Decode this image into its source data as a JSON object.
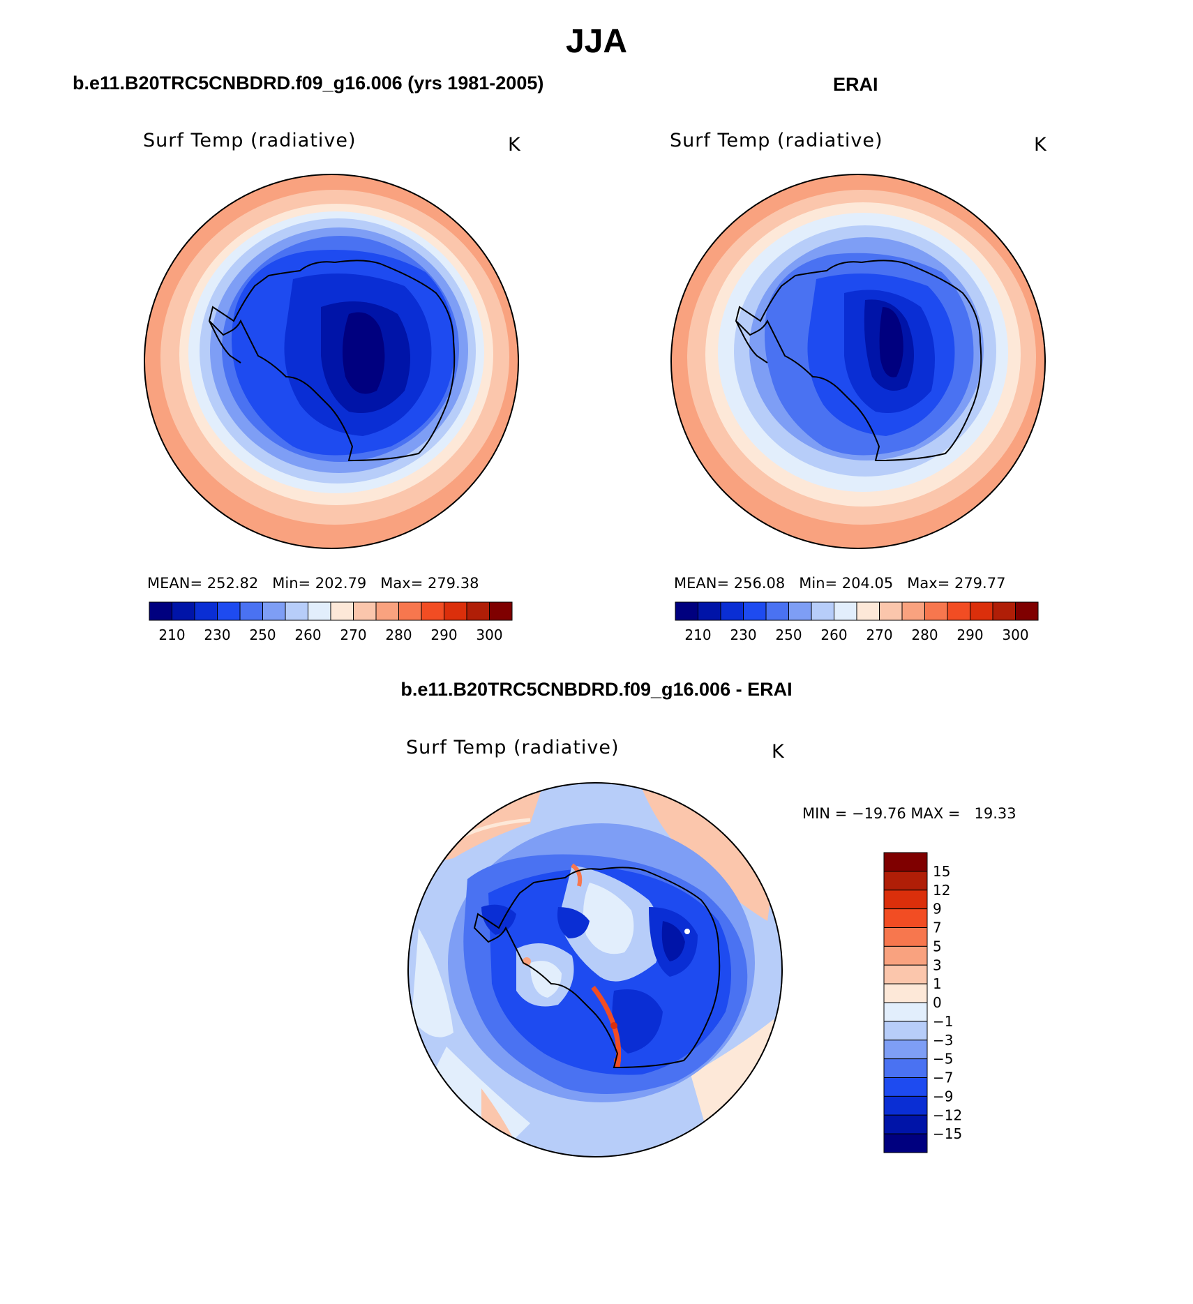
{
  "figure": {
    "title": "JJA",
    "panel_a": {
      "case_title": "b.e11.B20TRC5CNBDRD.f09_g16.006 (yrs 1981-2005)",
      "variable": "Surf Temp (radiative)",
      "units": "K",
      "stats": "MEAN= 252.82   Min= 202.79   Max= 279.38"
    },
    "panel_b": {
      "case_title": "ERAI",
      "variable": "Surf Temp (radiative)",
      "units": "K",
      "stats": "MEAN= 256.08   Min= 204.05   Max= 279.77"
    },
    "panel_diff": {
      "case_title": "b.e11.B20TRC5CNBDRD.f09_g16.006 - ERAI",
      "variable": "Surf Temp (radiative)",
      "units": "K",
      "stats": "MIN = −19.76 MAX =   19.33"
    }
  },
  "colorbars": {
    "abs_colors": [
      "#00007f",
      "#0014a8",
      "#0a2ed4",
      "#1e4bf0",
      "#4a72f2",
      "#7e9ef5",
      "#b7cdf9",
      "#e2eefc",
      "#fde8d8",
      "#fbc6ac",
      "#f9a27f",
      "#f7774e",
      "#f24d23",
      "#db2f0b",
      "#b01e07",
      "#7f0000"
    ],
    "abs_labels": [
      "210",
      "230",
      "250",
      "260",
      "270",
      "280",
      "290",
      "300"
    ],
    "diff_colors": [
      "#00007f",
      "#0014a8",
      "#0a2ed4",
      "#1e4bf0",
      "#4a72f2",
      "#7e9ef5",
      "#b7cdf9",
      "#e2eefc",
      "#fde8d8",
      "#fbc6ac",
      "#f9a27f",
      "#f7774e",
      "#f24d23",
      "#db2f0b",
      "#b01e07",
      "#7f0000"
    ],
    "diff_labels": [
      "15",
      "12",
      "9",
      "7",
      "5",
      "3",
      "1",
      "0",
      "−1",
      "−3",
      "−5",
      "−7",
      "−9",
      "−12",
      "−15"
    ]
  }
}
